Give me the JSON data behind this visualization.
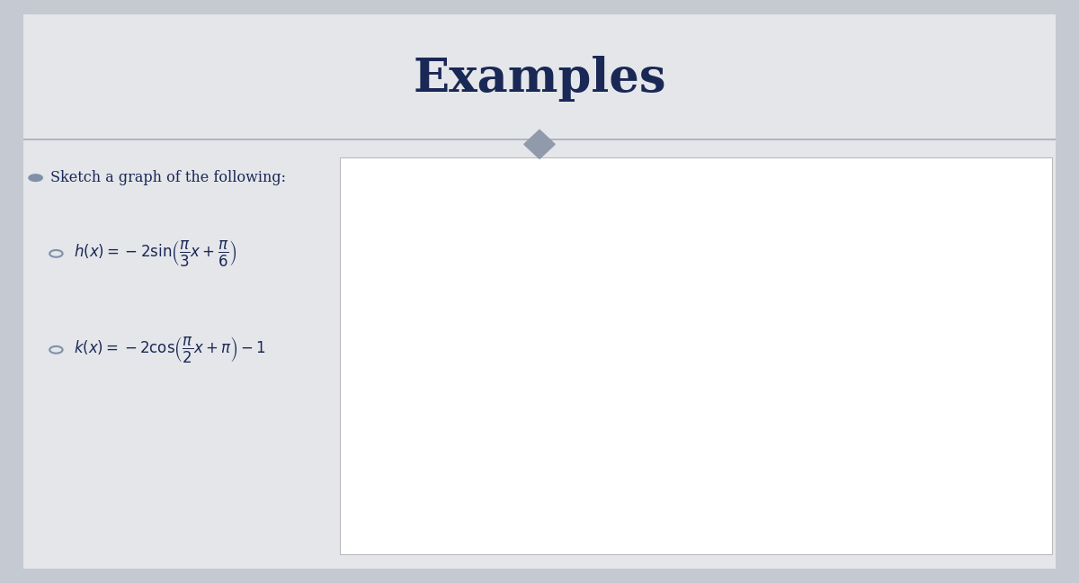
{
  "title": "Examples",
  "title_color": "#1a2855",
  "title_fontsize": 38,
  "bg_outer": "#c5c9d2",
  "bg_slide": "#e4e6ea",
  "bg_plot": "#ffffff",
  "text_color": "#1a2855",
  "subtitle": "Sketch a graph of the following:",
  "eq1": "$h(x) = -2\\sin\\!\\left(\\dfrac{\\pi}{3}x + \\dfrac{\\pi}{6}\\right)$",
  "eq2": "$k(x) = -2\\cos\\!\\left(\\dfrac{\\pi}{2}x + \\pi\\right) - 1$",
  "grid_color": "#c8c8c8",
  "axis_color": "#111111",
  "pi": 3.14159265358979
}
